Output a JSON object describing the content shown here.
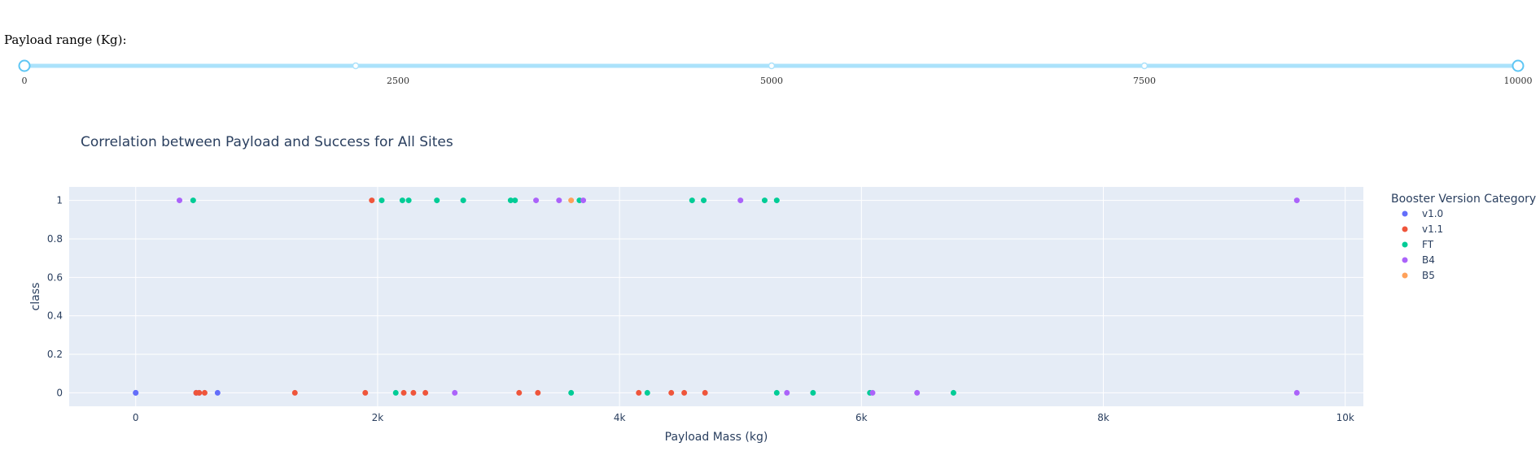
{
  "slider": {
    "label": "Payload range (Kg):",
    "min": 0,
    "max": 10000,
    "value": [
      0,
      10000
    ],
    "marks": [
      "0",
      "2500",
      "5000",
      "7500",
      "10000"
    ]
  },
  "colors": {
    "v1.0": "#636efa",
    "v1.1": "#EF553B",
    "FT": "#00cc96",
    "B4": "#ab63fa",
    "B5": "#FFA15A",
    "slider_track": "#abe2fb",
    "slider_handle": "#5ec6f4",
    "plot_bg": "#e5ecf6",
    "text": "#2a3f5f"
  },
  "chart_data": {
    "type": "scatter",
    "title": "Correlation between Payload and Success for All Sites",
    "xlabel": "Payload Mass (kg)",
    "ylabel": "class",
    "xlim": [
      -550,
      10150
    ],
    "ylim": [
      -0.07,
      1.07
    ],
    "xticks": [
      0,
      2000,
      4000,
      6000,
      8000,
      10000
    ],
    "xticklabels": [
      "0",
      "2k",
      "4k",
      "6k",
      "8k",
      "10k"
    ],
    "yticks": [
      0,
      0.2,
      0.4,
      0.6,
      0.8,
      1
    ],
    "yticklabels": [
      "0",
      "0.2",
      "0.4",
      "0.6",
      "0.8",
      "1"
    ],
    "legend_title": "Booster Version Category",
    "legend_position": "right",
    "series": [
      {
        "name": "v1.0",
        "x": [
          0,
          0,
          525,
          500,
          677
        ],
        "y": [
          0,
          0,
          0,
          0,
          0
        ]
      },
      {
        "name": "v1.1",
        "x": [
          1952,
          500,
          525,
          570,
          1316,
          1898,
          2216,
          2296,
          2395,
          3170,
          3325,
          4159,
          4428,
          4535,
          4707
        ],
        "y": [
          1,
          0,
          0,
          0,
          0,
          0,
          0,
          0,
          0,
          0,
          0,
          0,
          0,
          0,
          0
        ]
      },
      {
        "name": "FT",
        "x": [
          475,
          2034,
          2205,
          2257,
          2490,
          2708,
          3100,
          3136,
          3669,
          4600,
          4696,
          5200,
          5300,
          2150,
          3600,
          4230,
          5300,
          5600,
          6070,
          6761
        ],
        "y": [
          1,
          1,
          1,
          1,
          1,
          1,
          1,
          1,
          1,
          1,
          1,
          1,
          1,
          0,
          0,
          0,
          0,
          0,
          0,
          0
        ]
      },
      {
        "name": "B4",
        "x": [
          362,
          3310,
          3500,
          3700,
          5000,
          9600,
          2638,
          5384,
          6092,
          6460,
          9600
        ],
        "y": [
          1,
          1,
          1,
          1,
          1,
          1,
          0,
          0,
          0,
          0,
          0
        ]
      },
      {
        "name": "B5",
        "x": [
          3600
        ],
        "y": [
          1
        ]
      }
    ]
  }
}
